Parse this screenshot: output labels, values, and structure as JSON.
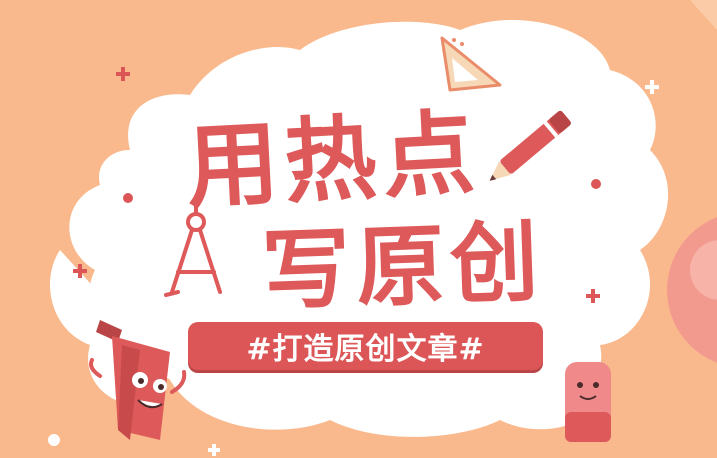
{
  "headline": {
    "line1": "用热点",
    "line2": "写原创"
  },
  "banner": {
    "text": "#打造原创文章#"
  },
  "colors": {
    "background": "#f9b98c",
    "accent": "#de5a5a",
    "cloud": "#ffffff"
  },
  "icons": [
    "pencil-icon",
    "compass-icon",
    "triangle-ruler-icon",
    "pencil-character-icon",
    "eraser-character-icon",
    "plus-sparkle-icon"
  ]
}
